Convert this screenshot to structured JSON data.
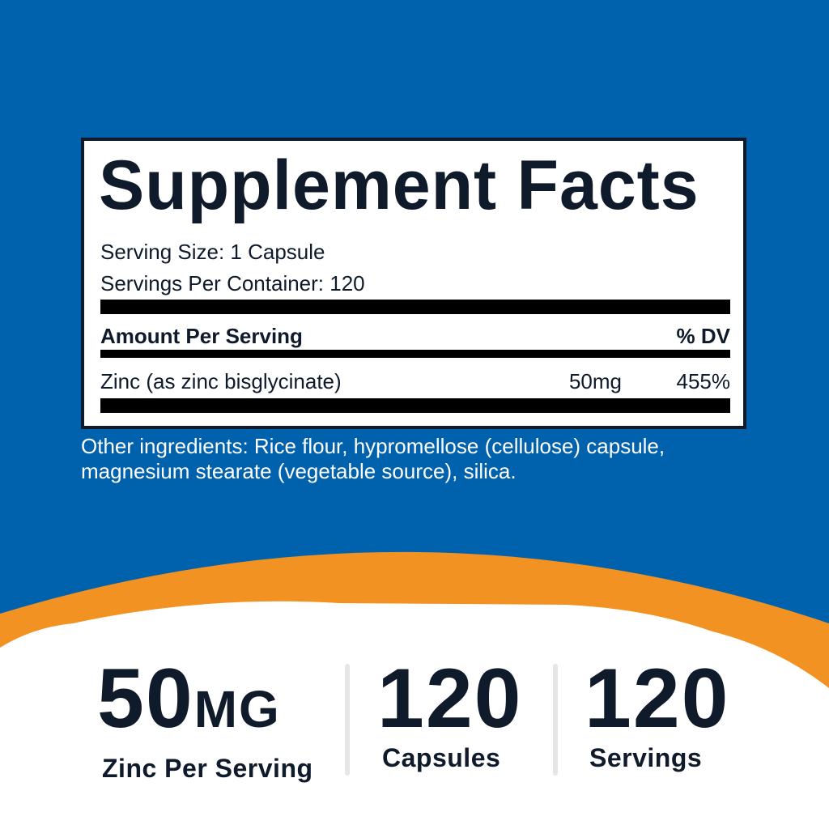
{
  "colors": {
    "blue": "#0061ac",
    "orange": "#f29222",
    "text": "#0f1a2a"
  },
  "facts": {
    "title": "Supplement Facts",
    "serving_size": "Serving Size: 1 Capsule",
    "servings_per_container": "Servings Per Container: 120",
    "amount_header": "Amount Per Serving",
    "dv_header": "% DV",
    "rows": [
      {
        "name": "Zinc (as zinc bisglycinate)",
        "amount": "50mg",
        "dv": "455%"
      }
    ]
  },
  "other_ingredients": {
    "line1": "Other ingredients: Rice flour, hypromellose (cellulose) capsule,",
    "line2": "magnesium stearate (vegetable source), silica."
  },
  "stats": [
    {
      "value": "50",
      "unit": "MG",
      "label": "Zinc Per Serving"
    },
    {
      "value": "120",
      "label": "Capsules"
    },
    {
      "value": "120",
      "label": "Servings"
    }
  ]
}
